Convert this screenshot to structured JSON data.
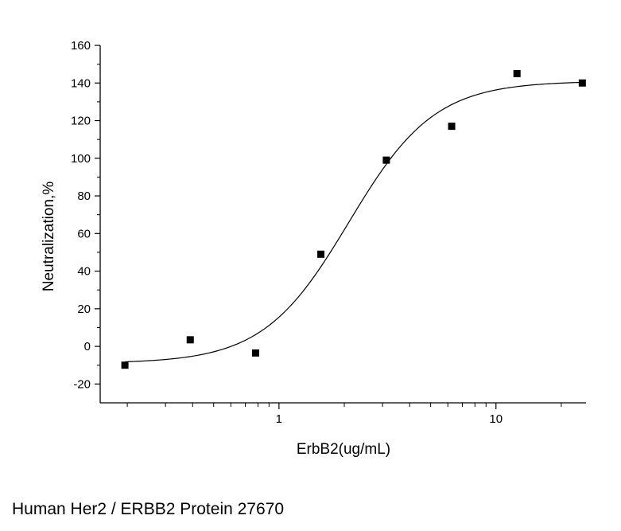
{
  "caption": "Human Her2 / ERBB2 Protein 27670",
  "chart_data": {
    "type": "scatter",
    "xlabel": "ErbB2(ug/mL)",
    "ylabel": "Neutralization,%",
    "xscale": "log",
    "xlim": [
      0.15,
      26
    ],
    "ylim": [
      -30,
      160
    ],
    "yticks": [
      -20,
      0,
      20,
      40,
      60,
      80,
      100,
      120,
      140,
      160
    ],
    "xticks_major": [
      1,
      10
    ],
    "xtick_labels": [
      "1",
      "10"
    ],
    "grid": false,
    "legend": "none",
    "series": [
      {
        "x": [
          0.195,
          0.39,
          0.78,
          1.56,
          3.125,
          6.25,
          12.5,
          25
        ],
        "y": [
          -10,
          3.5,
          -3.5,
          49,
          99,
          117,
          145,
          140
        ]
      }
    ],
    "fit_curve": {
      "model": "4-parameter logistic",
      "bottom": -9,
      "top": 141,
      "ec50": 2.1,
      "hill": 2.2
    },
    "colors": {
      "marker": "#000000",
      "line": "#000000"
    }
  }
}
